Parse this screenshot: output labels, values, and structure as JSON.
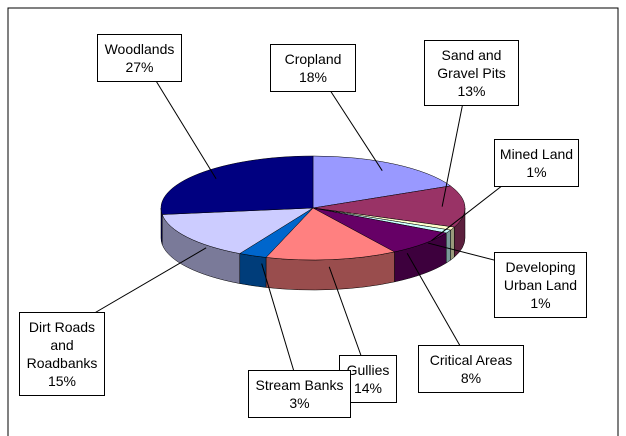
{
  "chart_data": {
    "type": "pie3d",
    "categories": [
      "Cropland",
      "Sand and Gravel Pits",
      "Mined Land",
      "Developing Urban Land",
      "Critical Areas",
      "Gullies",
      "Stream Banks",
      "Dirt Roads and Roadbanks",
      "Woodlands"
    ],
    "values": [
      18,
      13,
      1,
      1,
      8,
      14,
      3,
      15,
      27
    ],
    "value_labels": [
      "18%",
      "13%",
      "1%",
      "1%",
      "8%",
      "14%",
      "3%",
      "15%",
      "27%"
    ],
    "colors": [
      "#9999ff",
      "#993366",
      "#ffffcc",
      "#ccffff",
      "#660066",
      "#ff8080",
      "#0066cc",
      "#ccccff",
      "#000080"
    ]
  }
}
